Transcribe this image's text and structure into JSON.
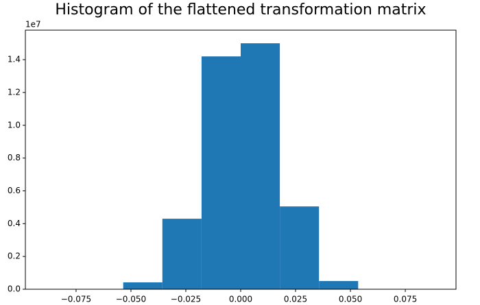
{
  "chart_data": {
    "type": "histogram",
    "title": "Histogram of the flattened transformation matrix",
    "y_offset_label": "1e7",
    "bins": [
      -0.0892,
      -0.07136,
      -0.05352,
      -0.03568,
      -0.01784,
      0,
      0.01784,
      0.03568,
      0.05352,
      0.07136,
      0.0892
    ],
    "counts": [
      0,
      0,
      420000,
      4300000,
      14200000,
      15000000,
      5050000,
      500000,
      0,
      0
    ],
    "color": "#1f77b4",
    "xlim": [
      -0.0981,
      0.0981
    ],
    "xticks": [
      {
        "value": -0.075,
        "label": "−0.075"
      },
      {
        "value": -0.05,
        "label": "−0.050"
      },
      {
        "value": -0.025,
        "label": "−0.025"
      },
      {
        "value": 0,
        "label": "0.000"
      },
      0.025,
      {
        "value": 0.05,
        "label": "0.050"
      },
      0.075
    ],
    "ylim": [
      0,
      15800000
    ],
    "yticks": [
      {
        "value": 0,
        "label": "0.0"
      },
      {
        "value": 2000000,
        "label": "0.2"
      },
      {
        "value": 4000000,
        "label": "0.4"
      },
      {
        "value": 6000000,
        "label": "0.6"
      },
      {
        "value": 8000000,
        "label": "0.8"
      },
      {
        "value": 10000000,
        "label": "1.0"
      },
      {
        "value": 12000000,
        "label": "1.2"
      },
      {
        "value": 14000000,
        "label": "1.4"
      }
    ],
    "grid": false
  }
}
